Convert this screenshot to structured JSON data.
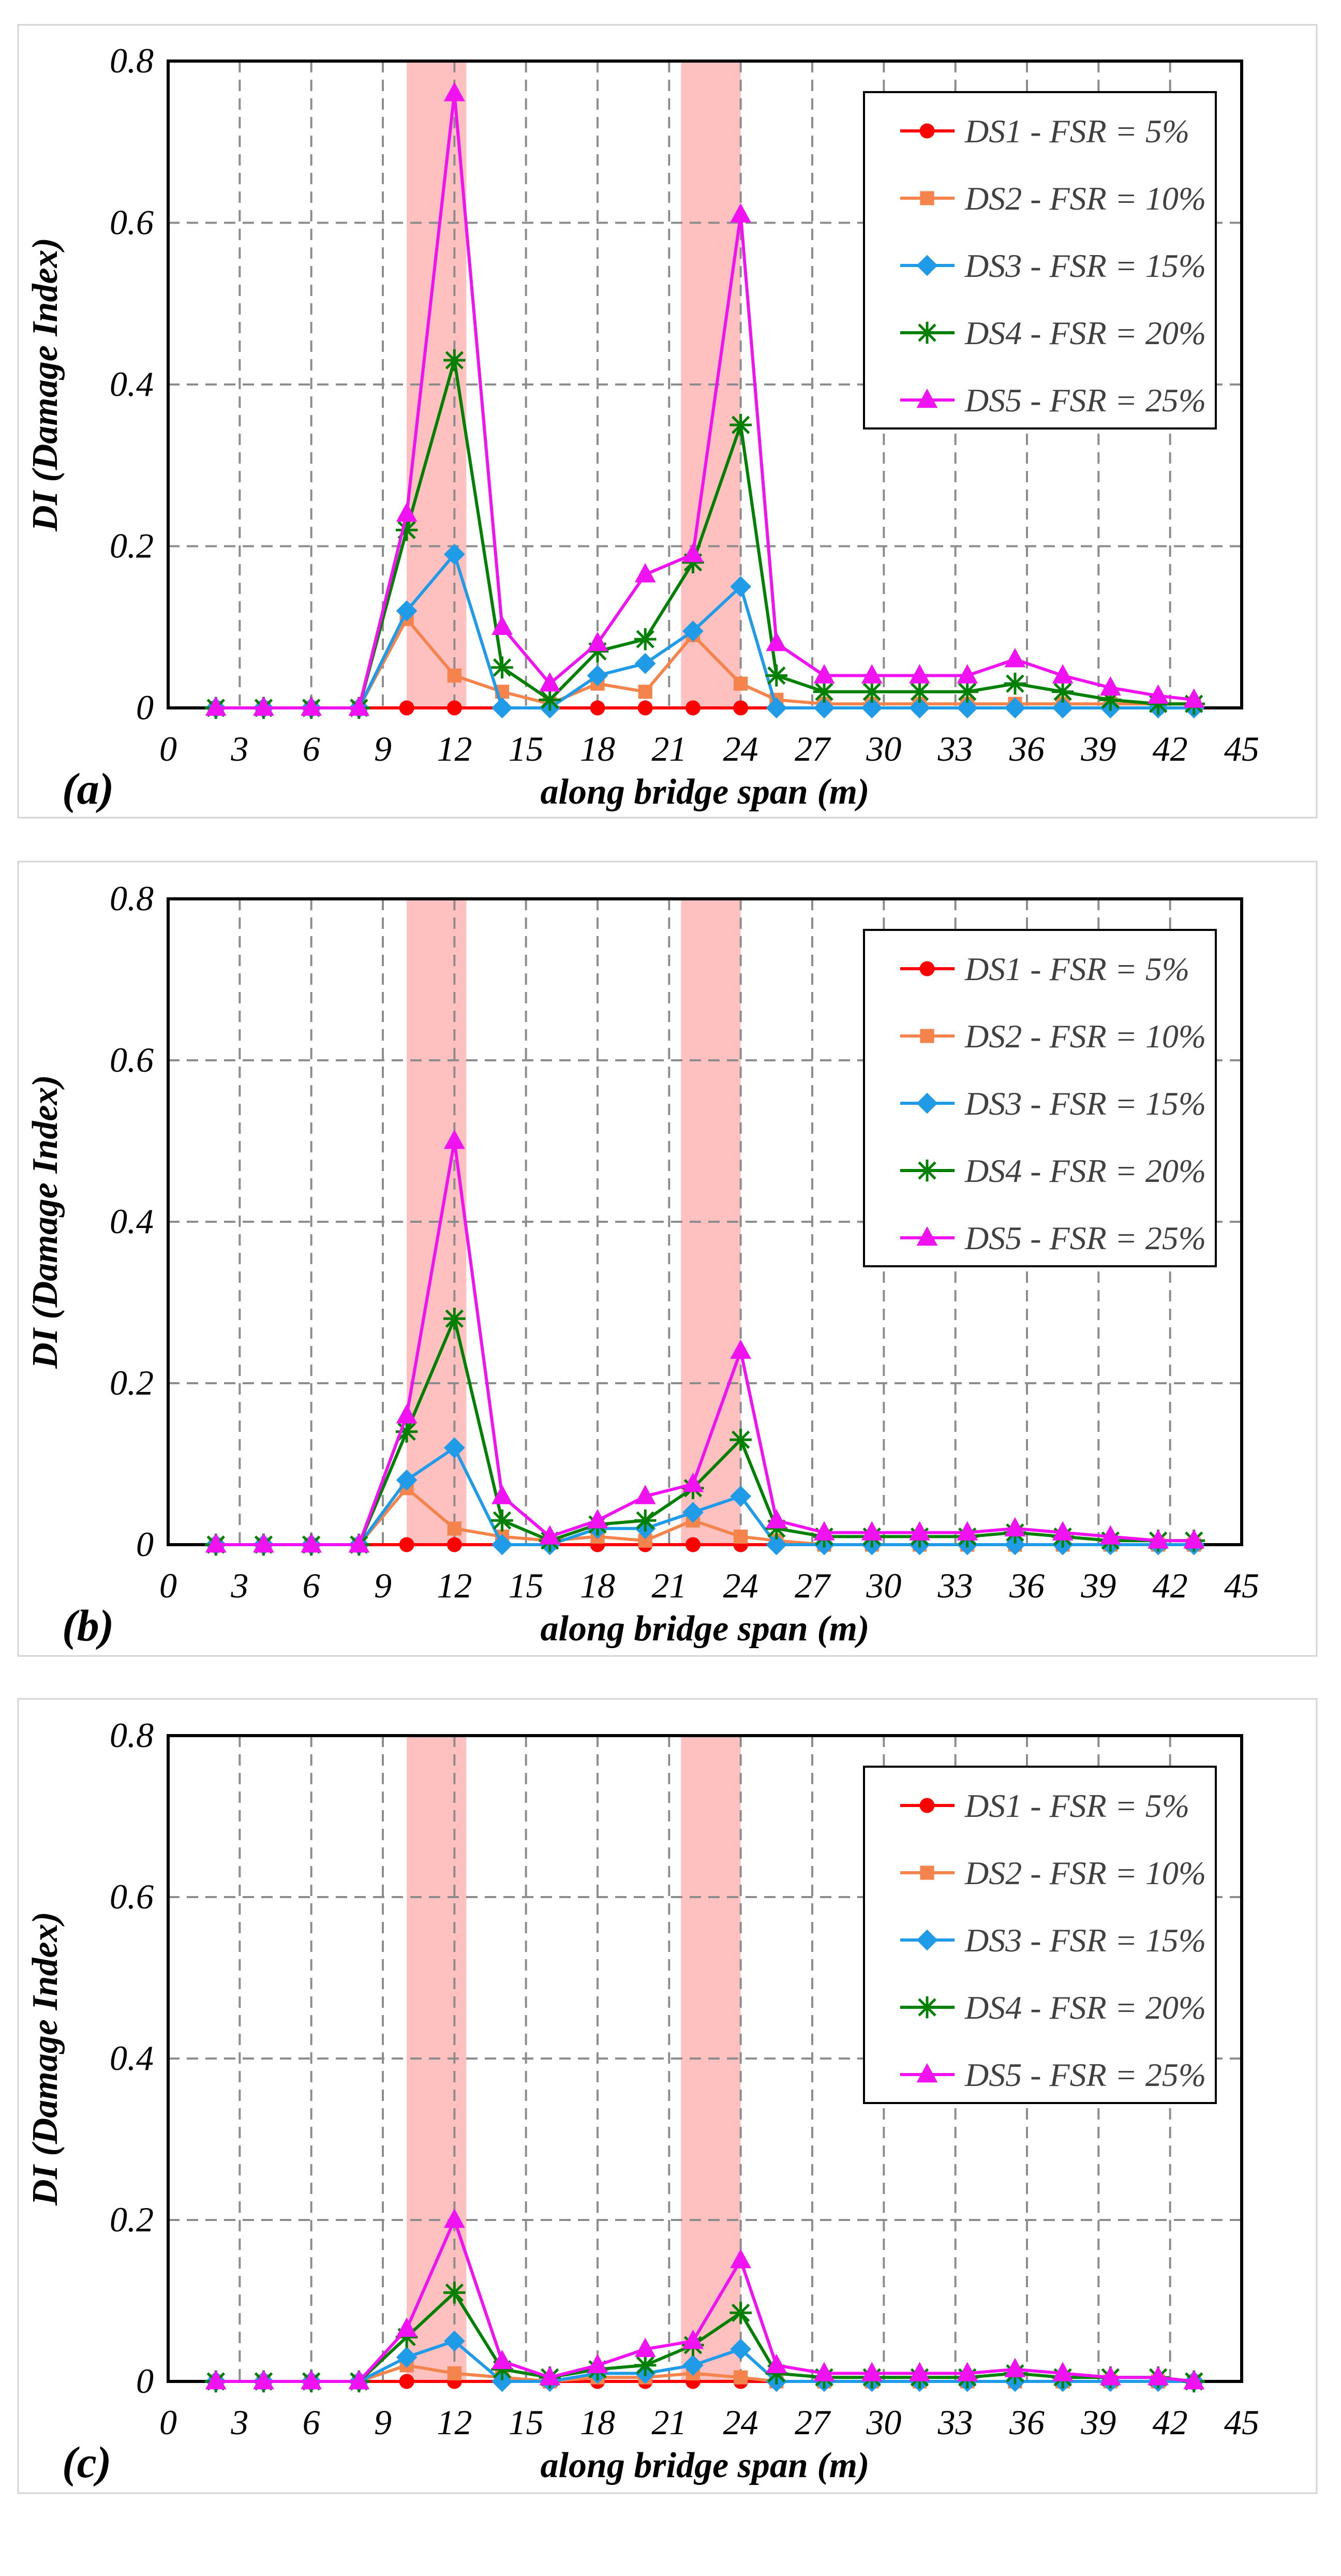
{
  "figure": {
    "panels": [
      "(a)",
      "(b)",
      "(c)"
    ]
  },
  "colors": {
    "DS1": "#ff0000",
    "DS2": "#f4844c",
    "DS3": "#1f9be8",
    "DS4": "#008000",
    "DS5": "#f012f0",
    "highlight": "#ffc0c0",
    "grid": "#8c8c8c"
  },
  "chart_data": [
    {
      "type": "line",
      "panel_label": "(a)",
      "xlabel": "along bridge span (m)",
      "ylabel": "DI (Damage Index)",
      "xlim": [
        0,
        45
      ],
      "ylim": [
        0,
        0.8
      ],
      "x_ticks": [
        "0",
        "3",
        "6",
        "9",
        "12",
        "15",
        "18",
        "21",
        "24",
        "27",
        "30",
        "33",
        "36",
        "39",
        "42",
        "45"
      ],
      "y_ticks": [
        "0",
        "0.2",
        "0.4",
        "0.6",
        "0.8"
      ],
      "highlight_x_ranges": [
        [
          10,
          12.5
        ],
        [
          21.5,
          24
        ]
      ],
      "x": [
        2,
        4,
        6,
        8,
        10,
        12,
        14,
        16,
        18,
        20,
        22,
        24,
        25.5,
        27.5,
        29.5,
        31.5,
        33.5,
        35.5,
        37.5,
        39.5,
        41.5,
        43
      ],
      "series": [
        {
          "name": "DS1 - FSR = 5%",
          "marker": "circle",
          "values": [
            0,
            0,
            0,
            0,
            0,
            0,
            0,
            0,
            0,
            0,
            0,
            0,
            0,
            0,
            0,
            0,
            0,
            0,
            0,
            0,
            0,
            0
          ]
        },
        {
          "name": "DS2 - FSR = 10%",
          "marker": "square",
          "values": [
            0,
            0,
            0,
            0,
            0.11,
            0.04,
            0.02,
            0.005,
            0.03,
            0.02,
            0.09,
            0.03,
            0.01,
            0.005,
            0.005,
            0.005,
            0.005,
            0.005,
            0.005,
            0.005,
            0.005,
            0.005
          ]
        },
        {
          "name": "DS3 - FSR = 15%",
          "marker": "diamond",
          "values": [
            0,
            0,
            0,
            0,
            0.12,
            0.19,
            0,
            0,
            0.04,
            0.055,
            0.095,
            0.15,
            0,
            0,
            0,
            0,
            0,
            0,
            0,
            0,
            0,
            0
          ]
        },
        {
          "name": "DS4 - FSR = 20%",
          "marker": "star",
          "values": [
            0,
            0,
            0,
            0,
            0.22,
            0.43,
            0.05,
            0.01,
            0.07,
            0.085,
            0.18,
            0.35,
            0.04,
            0.02,
            0.02,
            0.02,
            0.02,
            0.03,
            0.02,
            0.01,
            0.005,
            0.005
          ]
        },
        {
          "name": "DS5 - FSR = 25%",
          "marker": "triangle",
          "values": [
            0,
            0,
            0,
            0,
            0.24,
            0.76,
            0.1,
            0.03,
            0.08,
            0.165,
            0.19,
            0.61,
            0.08,
            0.04,
            0.04,
            0.04,
            0.04,
            0.06,
            0.04,
            0.025,
            0.015,
            0.01
          ]
        }
      ]
    },
    {
      "type": "line",
      "panel_label": "(b)",
      "xlabel": "along bridge span (m)",
      "ylabel": "DI (Damage Index)",
      "xlim": [
        0,
        45
      ],
      "ylim": [
        0,
        0.8
      ],
      "x_ticks": [
        "0",
        "3",
        "6",
        "9",
        "12",
        "15",
        "18",
        "21",
        "24",
        "27",
        "30",
        "33",
        "36",
        "39",
        "42",
        "45"
      ],
      "y_ticks": [
        "0",
        "0.2",
        "0.4",
        "0.6",
        "0.8"
      ],
      "highlight_x_ranges": [
        [
          10,
          12.5
        ],
        [
          21.5,
          24
        ]
      ],
      "x": [
        2,
        4,
        6,
        8,
        10,
        12,
        14,
        16,
        18,
        20,
        22,
        24,
        25.5,
        27.5,
        29.5,
        31.5,
        33.5,
        35.5,
        37.5,
        39.5,
        41.5,
        43
      ],
      "series": [
        {
          "name": "DS1 - FSR = 5%",
          "marker": "circle",
          "values": [
            0,
            0,
            0,
            0,
            0,
            0,
            0,
            0,
            0,
            0,
            0,
            0,
            0,
            0,
            0,
            0,
            0,
            0,
            0,
            0,
            0,
            0
          ]
        },
        {
          "name": "DS2 - FSR = 10%",
          "marker": "square",
          "values": [
            0,
            0,
            0,
            0,
            0.07,
            0.02,
            0.01,
            0.005,
            0.01,
            0.005,
            0.03,
            0.01,
            0.005,
            0,
            0,
            0,
            0,
            0,
            0,
            0,
            0,
            0
          ]
        },
        {
          "name": "DS3 - FSR = 15%",
          "marker": "diamond",
          "values": [
            0,
            0,
            0,
            0,
            0.08,
            0.12,
            0,
            0,
            0.02,
            0.02,
            0.04,
            0.06,
            0,
            0,
            0,
            0,
            0,
            0,
            0,
            0,
            0,
            0
          ]
        },
        {
          "name": "DS4 - FSR = 20%",
          "marker": "star",
          "values": [
            0,
            0,
            0,
            0,
            0.14,
            0.28,
            0.03,
            0.005,
            0.025,
            0.03,
            0.07,
            0.13,
            0.02,
            0.01,
            0.01,
            0.01,
            0.01,
            0.015,
            0.01,
            0.005,
            0.005,
            0.005
          ]
        },
        {
          "name": "DS5 - FSR = 25%",
          "marker": "triangle",
          "values": [
            0,
            0,
            0,
            0,
            0.16,
            0.5,
            0.06,
            0.01,
            0.03,
            0.06,
            0.075,
            0.24,
            0.03,
            0.015,
            0.015,
            0.015,
            0.015,
            0.02,
            0.015,
            0.01,
            0.005,
            0.005
          ]
        }
      ]
    },
    {
      "type": "line",
      "panel_label": "(c)",
      "xlabel": "along bridge span (m)",
      "ylabel": "DI (Damage Index)",
      "xlim": [
        0,
        45
      ],
      "ylim": [
        0,
        0.8
      ],
      "x_ticks": [
        "0",
        "3",
        "6",
        "9",
        "12",
        "15",
        "18",
        "21",
        "24",
        "27",
        "30",
        "33",
        "36",
        "39",
        "42",
        "45"
      ],
      "y_ticks": [
        "0",
        "0.2",
        "0.4",
        "0.6",
        "0.8"
      ],
      "highlight_x_ranges": [
        [
          10,
          12.5
        ],
        [
          21.5,
          24
        ]
      ],
      "x": [
        2,
        4,
        6,
        8,
        10,
        12,
        14,
        16,
        18,
        20,
        22,
        24,
        25.5,
        27.5,
        29.5,
        31.5,
        33.5,
        35.5,
        37.5,
        39.5,
        41.5,
        43
      ],
      "series": [
        {
          "name": "DS1 - FSR = 5%",
          "marker": "circle",
          "values": [
            0,
            0,
            0,
            0,
            0,
            0,
            0,
            0,
            0,
            0,
            0,
            0,
            0,
            0,
            0,
            0,
            0,
            0,
            0,
            0,
            0,
            0
          ]
        },
        {
          "name": "DS2 - FSR = 10%",
          "marker": "square",
          "values": [
            0,
            0,
            0,
            0,
            0.02,
            0.01,
            0.005,
            0,
            0.005,
            0.005,
            0.01,
            0.005,
            0,
            0,
            0,
            0,
            0,
            0,
            0,
            0,
            0,
            0
          ]
        },
        {
          "name": "DS3 - FSR = 15%",
          "marker": "diamond",
          "values": [
            0,
            0,
            0,
            0,
            0.03,
            0.05,
            0,
            0,
            0.01,
            0.01,
            0.02,
            0.04,
            0,
            0,
            0,
            0,
            0,
            0,
            0,
            0,
            0,
            0
          ]
        },
        {
          "name": "DS4 - FSR = 20%",
          "marker": "star",
          "values": [
            0,
            0,
            0,
            0,
            0.055,
            0.11,
            0.015,
            0.005,
            0.015,
            0.02,
            0.045,
            0.085,
            0.01,
            0.005,
            0.005,
            0.005,
            0.005,
            0.01,
            0.005,
            0.005,
            0.005,
            0
          ]
        },
        {
          "name": "DS5 - FSR = 25%",
          "marker": "triangle",
          "values": [
            0,
            0,
            0,
            0,
            0.065,
            0.2,
            0.025,
            0.005,
            0.02,
            0.04,
            0.05,
            0.15,
            0.02,
            0.01,
            0.01,
            0.01,
            0.01,
            0.015,
            0.01,
            0.005,
            0.005,
            0
          ]
        }
      ]
    }
  ]
}
